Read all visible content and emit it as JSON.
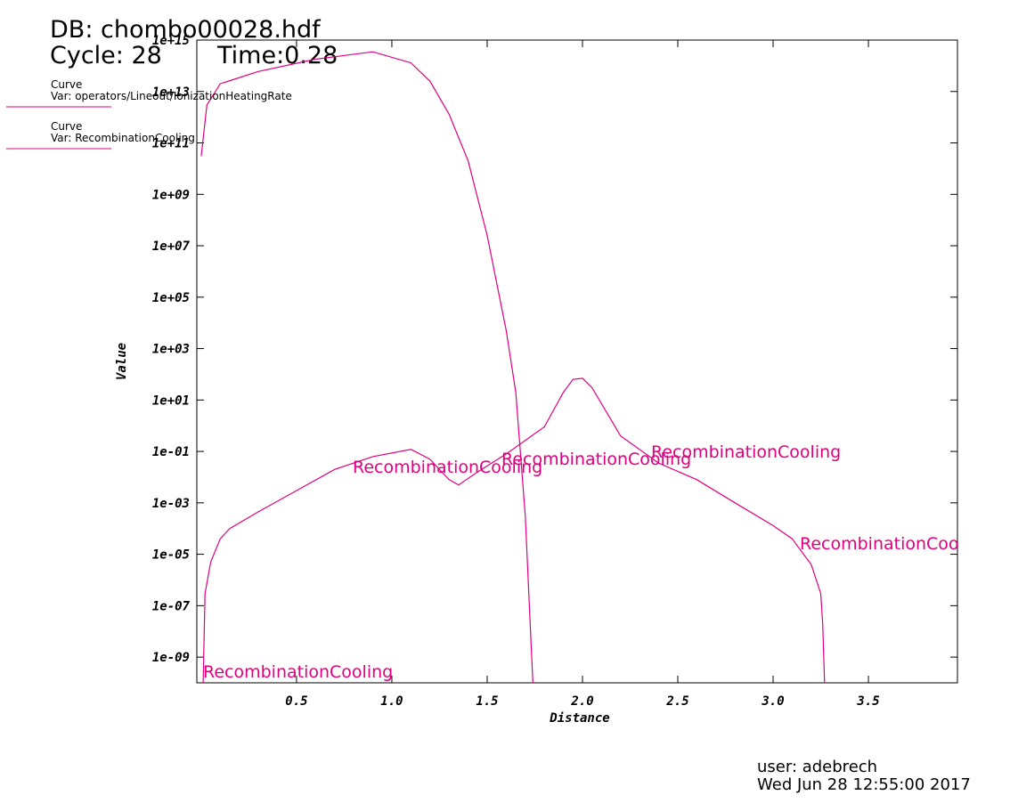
{
  "chart_data": {
    "type": "line",
    "header": {
      "database": "DB: chombo00028.hdf",
      "cycle": "Cycle: 28",
      "time": "Time:0.28"
    },
    "x_label": "Distance",
    "y_label": "Value",
    "log_y": true,
    "color": "#e0007f",
    "xlim": [
      -0.023,
      3.967
    ],
    "ylim": [
      1e-10,
      1000000000000000.0
    ],
    "xticks": [
      0.5,
      {
        "value": 1,
        "label": "1.0"
      },
      1.5,
      {
        "value": 2,
        "label": "2.0"
      },
      2.5,
      {
        "value": 3,
        "label": "3.0"
      },
      3.5
    ],
    "yticks": [
      {
        "value": 1e-09,
        "label": "1e-09"
      },
      {
        "value": 1e-07,
        "label": "1e-07"
      },
      {
        "value": 1e-05,
        "label": "1e-05"
      },
      {
        "value": 0.001,
        "label": "1e-03"
      },
      {
        "value": 0.1,
        "label": "1e-01"
      },
      {
        "value": 10,
        "label": "1e+01"
      },
      {
        "value": 1000,
        "label": "1e+03"
      },
      {
        "value": 100000,
        "label": "1e+05"
      },
      {
        "value": 10000000,
        "label": "1e+07"
      },
      {
        "value": 1000000000,
        "label": "1e+09"
      },
      {
        "value": 100000000000,
        "label": "1e+11"
      },
      {
        "value": 10000000000000,
        "label": "1e+13"
      },
      {
        "value": 1000000000000000,
        "label": "1e+15"
      }
    ],
    "series": [
      {
        "legend_title": "Curve",
        "name": "Var: operators/Lineout/IonizationHeatingRate",
        "color": "#e0007f",
        "x": [
          0,
          0.03,
          0.1,
          0.3,
          0.6,
          0.9,
          1.1,
          1.2,
          1.3,
          1.4,
          1.5,
          1.6,
          1.65,
          1.7,
          1.74
        ],
        "values": [
          30000000000.0,
          3000000000000.0,
          20000000000000.0,
          60000000000000.0,
          180000000000000.0,
          350000000000000.0,
          130000000000000.0,
          25000000000000.0,
          1300000000000.0,
          20000000000.0,
          25000000.0,
          5000,
          20,
          0.0003,
          1e-10
        ]
      },
      {
        "legend_title": "Curve",
        "name": "Var: RecombinationCooling",
        "color": "#e0007f",
        "x": [
          0.01,
          0.02,
          0.05,
          0.1,
          0.15,
          0.3,
          0.5,
          0.7,
          0.9,
          1.1,
          1.2,
          1.3,
          1.35,
          1.45,
          1.6,
          1.8,
          1.9,
          1.95,
          2.0,
          2.05,
          2.2,
          2.4,
          2.6,
          2.8,
          3.0,
          3.1,
          3.2,
          3.25,
          3.26,
          3.27
        ],
        "values": [
          1e-10,
          3e-07,
          5e-06,
          4e-05,
          0.0001,
          0.00045,
          0.003,
          0.02,
          0.063,
          0.12,
          0.05,
          0.008,
          0.005,
          0.016,
          0.08,
          0.9,
          20,
          63,
          70,
          30,
          0.4,
          0.035,
          0.008,
          0.001,
          0.00013,
          4e-05,
          4e-06,
          3e-07,
          2e-08,
          1e-10
        ]
      }
    ],
    "curve_labels": [
      "RecombinationCooling",
      "RecombinationCooling",
      "RecombinationCooling",
      "RecombinationCooling",
      "RecombinationCooling"
    ],
    "footer": {
      "user": "user: adebrech",
      "date": "Wed Jun 28 12:55:00 2017"
    }
  }
}
